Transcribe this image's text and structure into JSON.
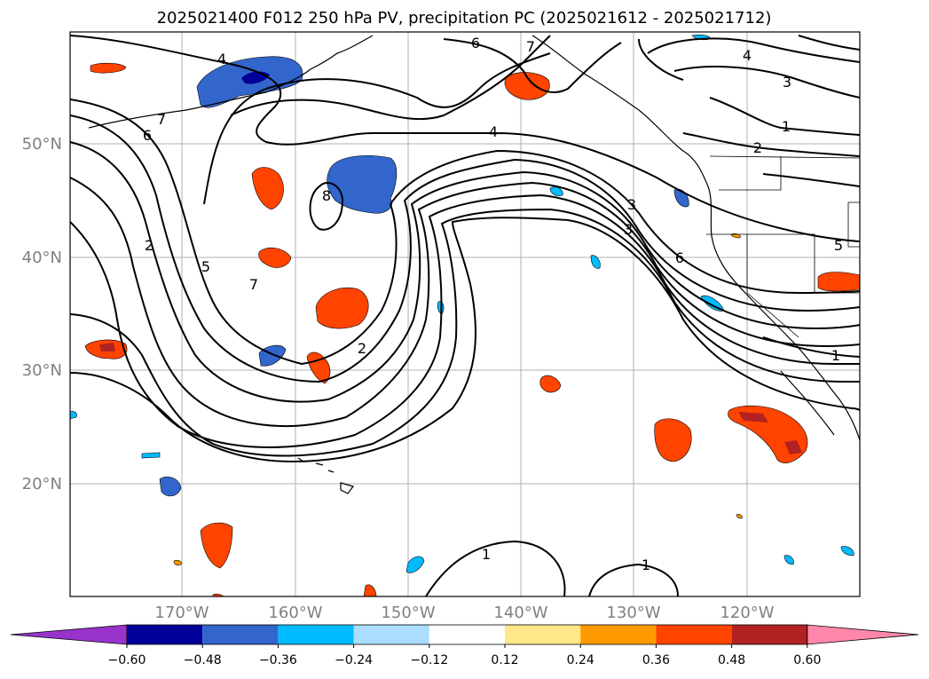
{
  "title": "2025021400 F012 250 hPa PV, precipitation PC (2025021612 - 2025021712)",
  "lat_labels": [
    "50°N",
    "40°N",
    "30°N",
    "20°N"
  ],
  "lon_labels": [
    "170°W",
    "160°W",
    "150°W",
    "140°W",
    "130°W",
    "120°W"
  ],
  "colorbar": {
    "ticks": [
      "−0.60",
      "−0.48",
      "−0.36",
      "−0.24",
      "−0.12",
      "0.12",
      "0.24",
      "0.36",
      "0.48",
      "0.60"
    ],
    "colors": [
      "#9933cc",
      "#000099",
      "#3366cc",
      "#00bbff",
      "#aaddff",
      "#ffffff",
      "#ffe88a",
      "#ff9900",
      "#ff4400",
      "#b22222",
      "#ff88aa"
    ]
  },
  "contour_labels": [
    "4",
    "7",
    "6",
    "7",
    "6",
    "4",
    "3",
    "1",
    "2",
    "8",
    "4",
    "2",
    "5",
    "7",
    "2",
    "3",
    "3",
    "6",
    "5",
    "1",
    "1",
    "1"
  ]
}
